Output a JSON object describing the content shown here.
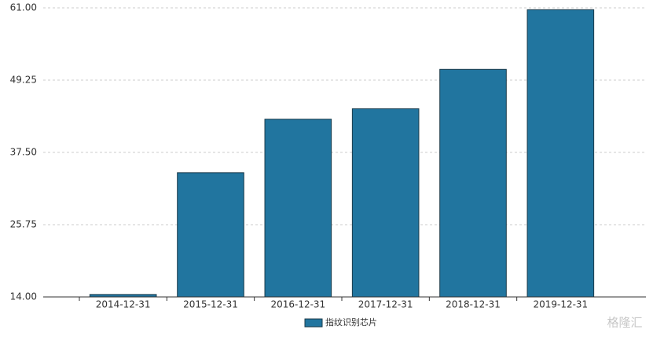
{
  "chart_data": {
    "type": "bar",
    "categories": [
      "2014-12-31",
      "2015-12-31",
      "2016-12-31",
      "2017-12-31",
      "2018-12-31",
      "2019-12-31"
    ],
    "series": [
      {
        "name": "指纹识别芯片",
        "color": "#21759f",
        "values": [
          14.4,
          34.2,
          42.9,
          44.6,
          51.0,
          60.7
        ]
      }
    ],
    "ylim": [
      14,
      61
    ],
    "yticks": [
      {
        "value": 14,
        "label": "14.00"
      },
      {
        "value": 25.75,
        "label": "25.75"
      },
      {
        "value": 37.5,
        "label": "37.50"
      },
      {
        "value": 49.25,
        "label": "49.25"
      },
      {
        "value": 61,
        "label": "61.00"
      }
    ],
    "grid": true,
    "legend": "bottom",
    "watermark": "格隆汇"
  }
}
